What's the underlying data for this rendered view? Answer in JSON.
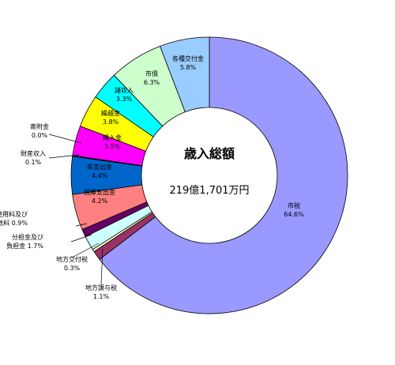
{
  "chart_data": {
    "type": "pie",
    "style": "donut",
    "center_title": "歳入総額",
    "center_total": "219億1,701万円",
    "slices": [
      {
        "label": "市税",
        "pct_label": "64.6%",
        "value": 64.6,
        "color": "#9999FF"
      },
      {
        "label": "地方譲与税",
        "pct_label": "1.1%",
        "value": 1.1,
        "color": "#993366"
      },
      {
        "label": "地方交付税",
        "pct_label": "0.3%",
        "value": 0.3,
        "color": "#FFFFCC"
      },
      {
        "label": "分担金及び負担金",
        "pct_label": "1.7%",
        "value": 1.7,
        "color": "#CCFFFF"
      },
      {
        "label": "使用料及び手数料",
        "pct_label": "0.9%",
        "value": 0.9,
        "color": "#660066"
      },
      {
        "label": "国庫支出金",
        "pct_label": "4.2%",
        "value": 4.2,
        "color": "#FF8080"
      },
      {
        "label": "県支出金",
        "pct_label": "4.4%",
        "value": 4.4,
        "color": "#0066CC"
      },
      {
        "label": "財産収入",
        "pct_label": "0.1%",
        "value": 0.1,
        "color": "#CCCCFF"
      },
      {
        "label": "寄附金",
        "pct_label": "0.0%",
        "value": 0.0,
        "color": "#000080"
      },
      {
        "label": "繰入金",
        "pct_label": "3.5%",
        "value": 3.5,
        "color": "#FF00FF"
      },
      {
        "label": "繰越金",
        "pct_label": "3.8%",
        "value": 3.8,
        "color": "#FFFF00"
      },
      {
        "label": "諸収入",
        "pct_label": "3.3%",
        "value": 3.3,
        "color": "#00FFFF"
      },
      {
        "label": "市債",
        "pct_label": "6.3%",
        "value": 6.3,
        "color": "#CCFFCC"
      },
      {
        "label": "各種交付金",
        "pct_label": "5.8%",
        "value": 5.8,
        "color": "#99CCFF"
      }
    ]
  }
}
